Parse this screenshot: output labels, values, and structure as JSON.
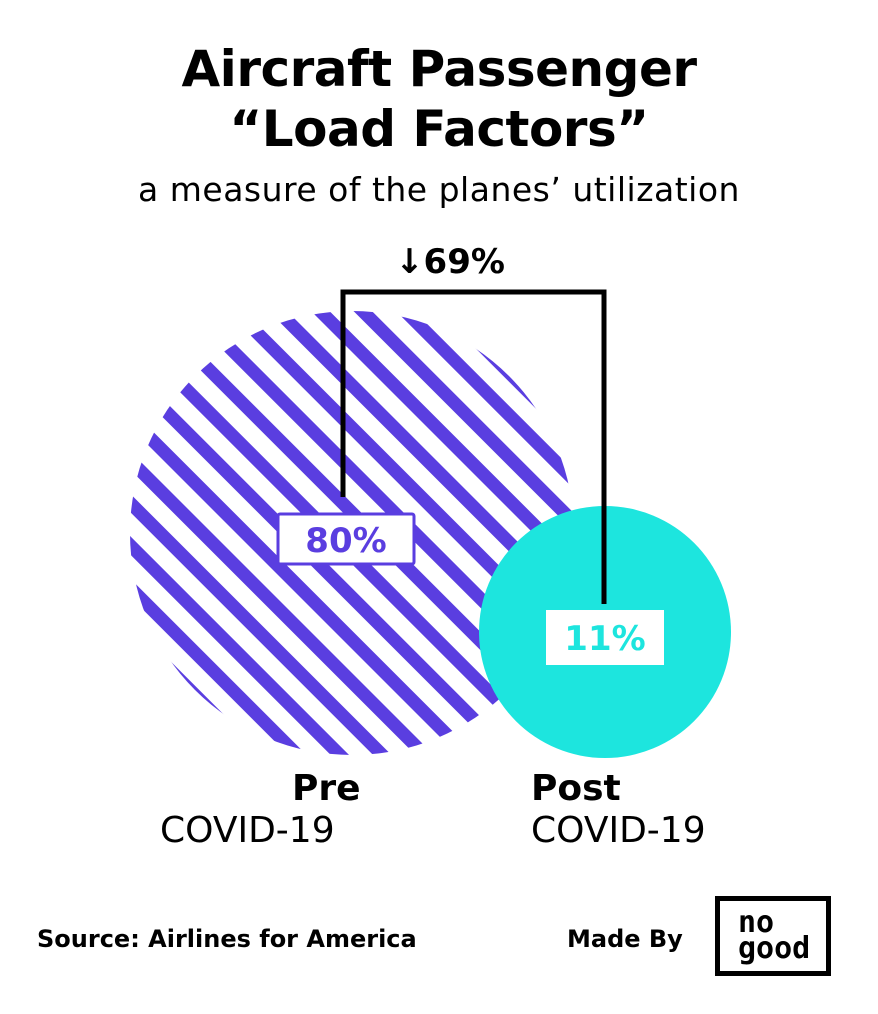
{
  "header": {
    "title_line1": "Aircraft Passenger",
    "title_line2": "“Load Factors”",
    "subtitle": "a measure of the planes’ utilization"
  },
  "chart_data": {
    "type": "area",
    "title": "Aircraft Passenger “Load Factors”",
    "subtitle": "a measure of the planes’ utilization",
    "categories": [
      "Pre COVID-19",
      "Post COVID-19"
    ],
    "values": [
      80,
      11
    ],
    "unit": "%",
    "value_labels": [
      "80%",
      "11%"
    ],
    "change": {
      "label": "↓69%",
      "direction": "down",
      "value": 69
    },
    "colors": {
      "pre": "#5a3ee0",
      "post": "#1de5de",
      "label_box_bg": "#ffffff"
    }
  },
  "labels": {
    "pre_bold": "Pre",
    "pre_sub": "COVID-19",
    "post_bold": "Post",
    "post_sub": "COVID-19"
  },
  "footer": {
    "source": "Source: Airlines for America",
    "made_by": "Made By",
    "logo_line1": "no",
    "logo_line2": "good"
  }
}
